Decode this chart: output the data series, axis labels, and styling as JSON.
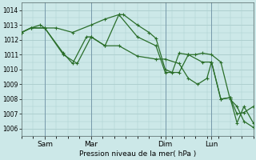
{
  "title": "",
  "xlabel": "Pression niveau de la mer( hPa )",
  "background_color": "#cce8e8",
  "grid_color": "#aacccc",
  "line_color": "#2a6e2a",
  "ylim": [
    1005.5,
    1014.5
  ],
  "yticks": [
    1006,
    1007,
    1008,
    1009,
    1010,
    1011,
    1012,
    1013,
    1014
  ],
  "xlim": [
    0,
    100
  ],
  "xtick_positions": [
    10,
    30,
    62,
    82
  ],
  "xtick_labels": [
    "Sam",
    "Mar",
    "Dim",
    "Lun"
  ],
  "vlines": [
    10,
    30,
    62,
    82
  ],
  "series": [
    [
      [
        0,
        1012.5
      ],
      [
        4,
        1012.8
      ],
      [
        10,
        1012.8
      ],
      [
        15,
        1012.8
      ],
      [
        22,
        1012.5
      ],
      [
        30,
        1013.0
      ],
      [
        36,
        1013.4
      ],
      [
        42,
        1013.7
      ],
      [
        44,
        1013.7
      ],
      [
        50,
        1013.0
      ],
      [
        55,
        1012.5
      ],
      [
        58,
        1012.1
      ],
      [
        62,
        1010.0
      ],
      [
        65,
        1009.8
      ],
      [
        68,
        1011.1
      ],
      [
        72,
        1011.0
      ],
      [
        75,
        1011.0
      ],
      [
        78,
        1011.1
      ],
      [
        82,
        1011.0
      ],
      [
        86,
        1010.5
      ],
      [
        90,
        1008.0
      ],
      [
        93,
        1007.5
      ],
      [
        96,
        1006.5
      ],
      [
        100,
        1006.1
      ]
    ],
    [
      [
        0,
        1012.5
      ],
      [
        4,
        1012.8
      ],
      [
        8,
        1013.0
      ],
      [
        10,
        1012.8
      ],
      [
        18,
        1011.0
      ],
      [
        24,
        1010.4
      ],
      [
        30,
        1012.2
      ],
      [
        36,
        1011.6
      ],
      [
        42,
        1013.7
      ],
      [
        50,
        1012.2
      ],
      [
        58,
        1011.6
      ],
      [
        62,
        1009.8
      ],
      [
        68,
        1009.8
      ],
      [
        72,
        1011.0
      ],
      [
        78,
        1010.5
      ],
      [
        82,
        1010.5
      ],
      [
        86,
        1008.0
      ],
      [
        90,
        1008.1
      ],
      [
        93,
        1006.4
      ],
      [
        96,
        1007.5
      ],
      [
        100,
        1006.4
      ],
      [
        103,
        1006.5
      ]
    ],
    [
      [
        0,
        1012.5
      ],
      [
        4,
        1012.8
      ],
      [
        10,
        1012.8
      ],
      [
        18,
        1011.1
      ],
      [
        22,
        1010.4
      ],
      [
        28,
        1012.2
      ],
      [
        30,
        1012.2
      ],
      [
        36,
        1011.6
      ],
      [
        42,
        1011.6
      ],
      [
        50,
        1010.9
      ],
      [
        58,
        1010.7
      ],
      [
        62,
        1010.7
      ],
      [
        68,
        1010.4
      ],
      [
        72,
        1009.4
      ],
      [
        76,
        1009.0
      ],
      [
        80,
        1009.4
      ],
      [
        82,
        1010.5
      ],
      [
        86,
        1008.0
      ],
      [
        90,
        1008.1
      ],
      [
        93,
        1007.0
      ],
      [
        96,
        1007.1
      ],
      [
        100,
        1007.5
      ],
      [
        103,
        1006.5
      ]
    ]
  ]
}
